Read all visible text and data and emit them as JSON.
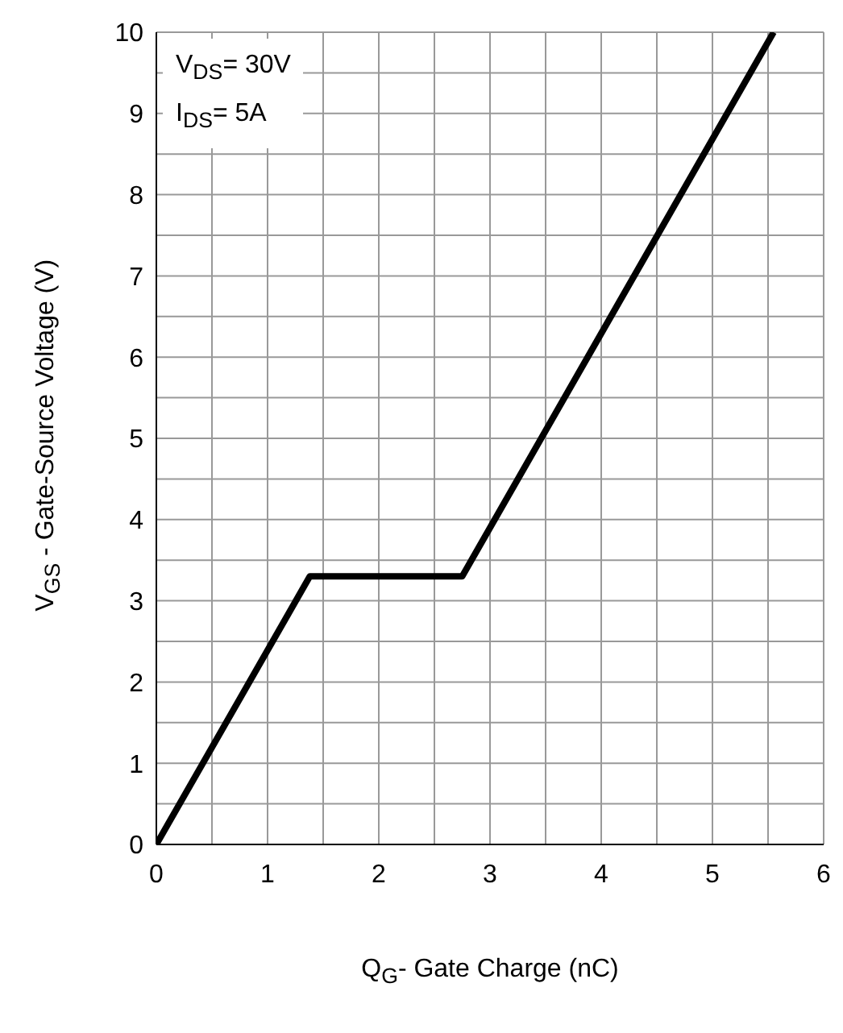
{
  "chart_data": {
    "type": "line",
    "xlabel": "Q$_{G}$- Gate Charge (nC)",
    "ylabel": "V$_{GS}$ - Gate-Source Voltage (V)",
    "annotations": [
      "V$_{DS}$= 30V",
      "I$_{DS}$= 5A"
    ],
    "x": [
      0,
      1.38,
      2.75,
      5.55
    ],
    "series": [
      {
        "color": "#000000",
        "values": [
          0,
          3.3,
          3.3,
          10
        ]
      }
    ],
    "xlim": [
      0,
      6
    ],
    "xticks": [
      0,
      {
        "value": 0.5,
        "label": null
      },
      1,
      {
        "value": 1.5,
        "label": null
      },
      2,
      {
        "value": 2.5,
        "label": null
      },
      3,
      {
        "value": 3.5,
        "label": null
      },
      4,
      {
        "value": 4.5,
        "label": null
      },
      5,
      {
        "value": 5.5,
        "label": null
      },
      6
    ],
    "ylim": [
      0,
      10
    ],
    "yticks": [
      0,
      {
        "value": 0.5,
        "label": null
      },
      1,
      {
        "value": 1.5,
        "label": null
      },
      2,
      {
        "value": 2.5,
        "label": null
      },
      3,
      {
        "value": 3.5,
        "label": null
      },
      4,
      {
        "value": 4.5,
        "label": null
      },
      5,
      {
        "value": 5.5,
        "label": null
      },
      6,
      {
        "value": 6.5,
        "label": null
      },
      7,
      {
        "value": 7.5,
        "label": null
      },
      8,
      {
        "value": 8.5,
        "label": null
      },
      9,
      {
        "value": 9.5,
        "label": null
      },
      10
    ],
    "grid": true,
    "marker": "none",
    "line_style": "solid"
  }
}
